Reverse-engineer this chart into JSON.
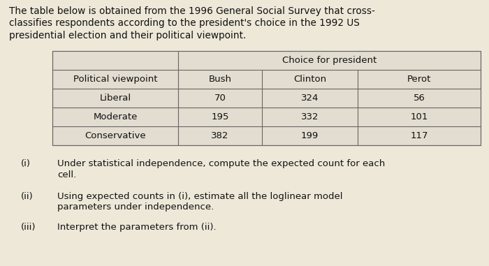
{
  "title_lines": [
    "The table below is obtained from the 1996 General Social Survey that cross-",
    "classifies respondents according to the president's choice in the 1992 US",
    "presidential election and their political viewpoint."
  ],
  "col_header_span": "Choice for president",
  "col_headers": [
    "Political viewpoint",
    "Bush",
    "Clinton",
    "Perot"
  ],
  "rows": [
    [
      "Liberal",
      "70",
      "324",
      "56"
    ],
    [
      "Moderate",
      "195",
      "332",
      "101"
    ],
    [
      "Conservative",
      "382",
      "199",
      "117"
    ]
  ],
  "questions": [
    {
      "label": "(i)",
      "text1": "Under statistical independence, compute the expected count for each",
      "text2": "cell."
    },
    {
      "label": "(ii)",
      "text1": "Using expected counts in (i), estimate all the loglinear model",
      "text2": "parameters under independence."
    },
    {
      "label": "(iii)",
      "text1": "Interpret the parameters from (ii).",
      "text2": ""
    }
  ],
  "bg_color": "#ede8d8",
  "line_color": "#666666",
  "text_color": "#111111",
  "font_size_title": 9.8,
  "font_size_table": 9.5,
  "font_size_questions": 9.5
}
